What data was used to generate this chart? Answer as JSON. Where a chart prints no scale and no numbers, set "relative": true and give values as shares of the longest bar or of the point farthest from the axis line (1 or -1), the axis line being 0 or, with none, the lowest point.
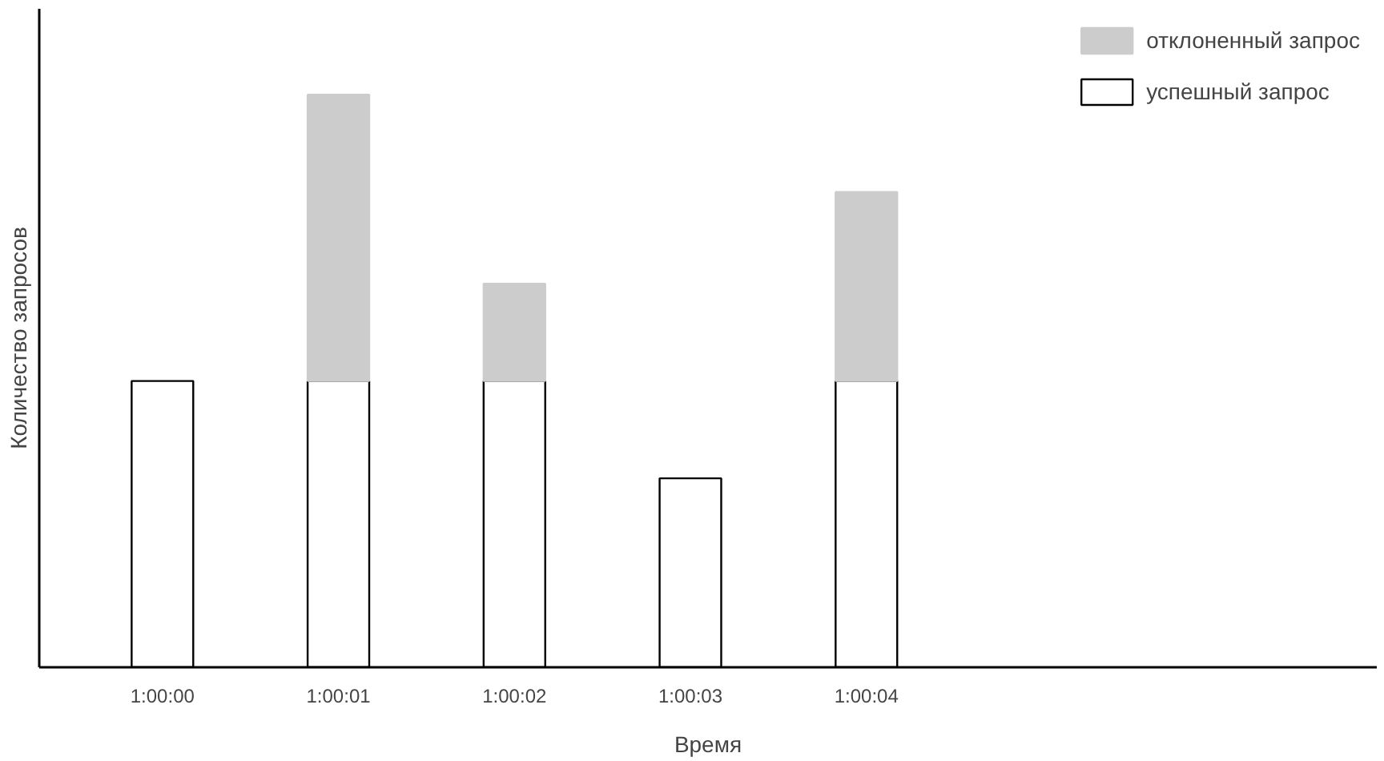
{
  "chart_data": {
    "type": "bar",
    "stacked": true,
    "relative": true,
    "xlabel": "Время",
    "ylabel": "Количество запросов",
    "categories": [
      "1:00:00",
      "1:00:01",
      "1:00:02",
      "1:00:03",
      "1:00:04"
    ],
    "series": [
      {
        "name": "успешный запрос",
        "color": "#ffffff",
        "values": [
          0.5,
          0.5,
          0.5,
          0.33,
          0.5
        ]
      },
      {
        "name": "отклоненный запрос",
        "color": "#cccccc",
        "values": [
          0,
          0.5,
          0.17,
          0,
          0.33
        ]
      }
    ],
    "legend": "top right",
    "grid": false
  }
}
